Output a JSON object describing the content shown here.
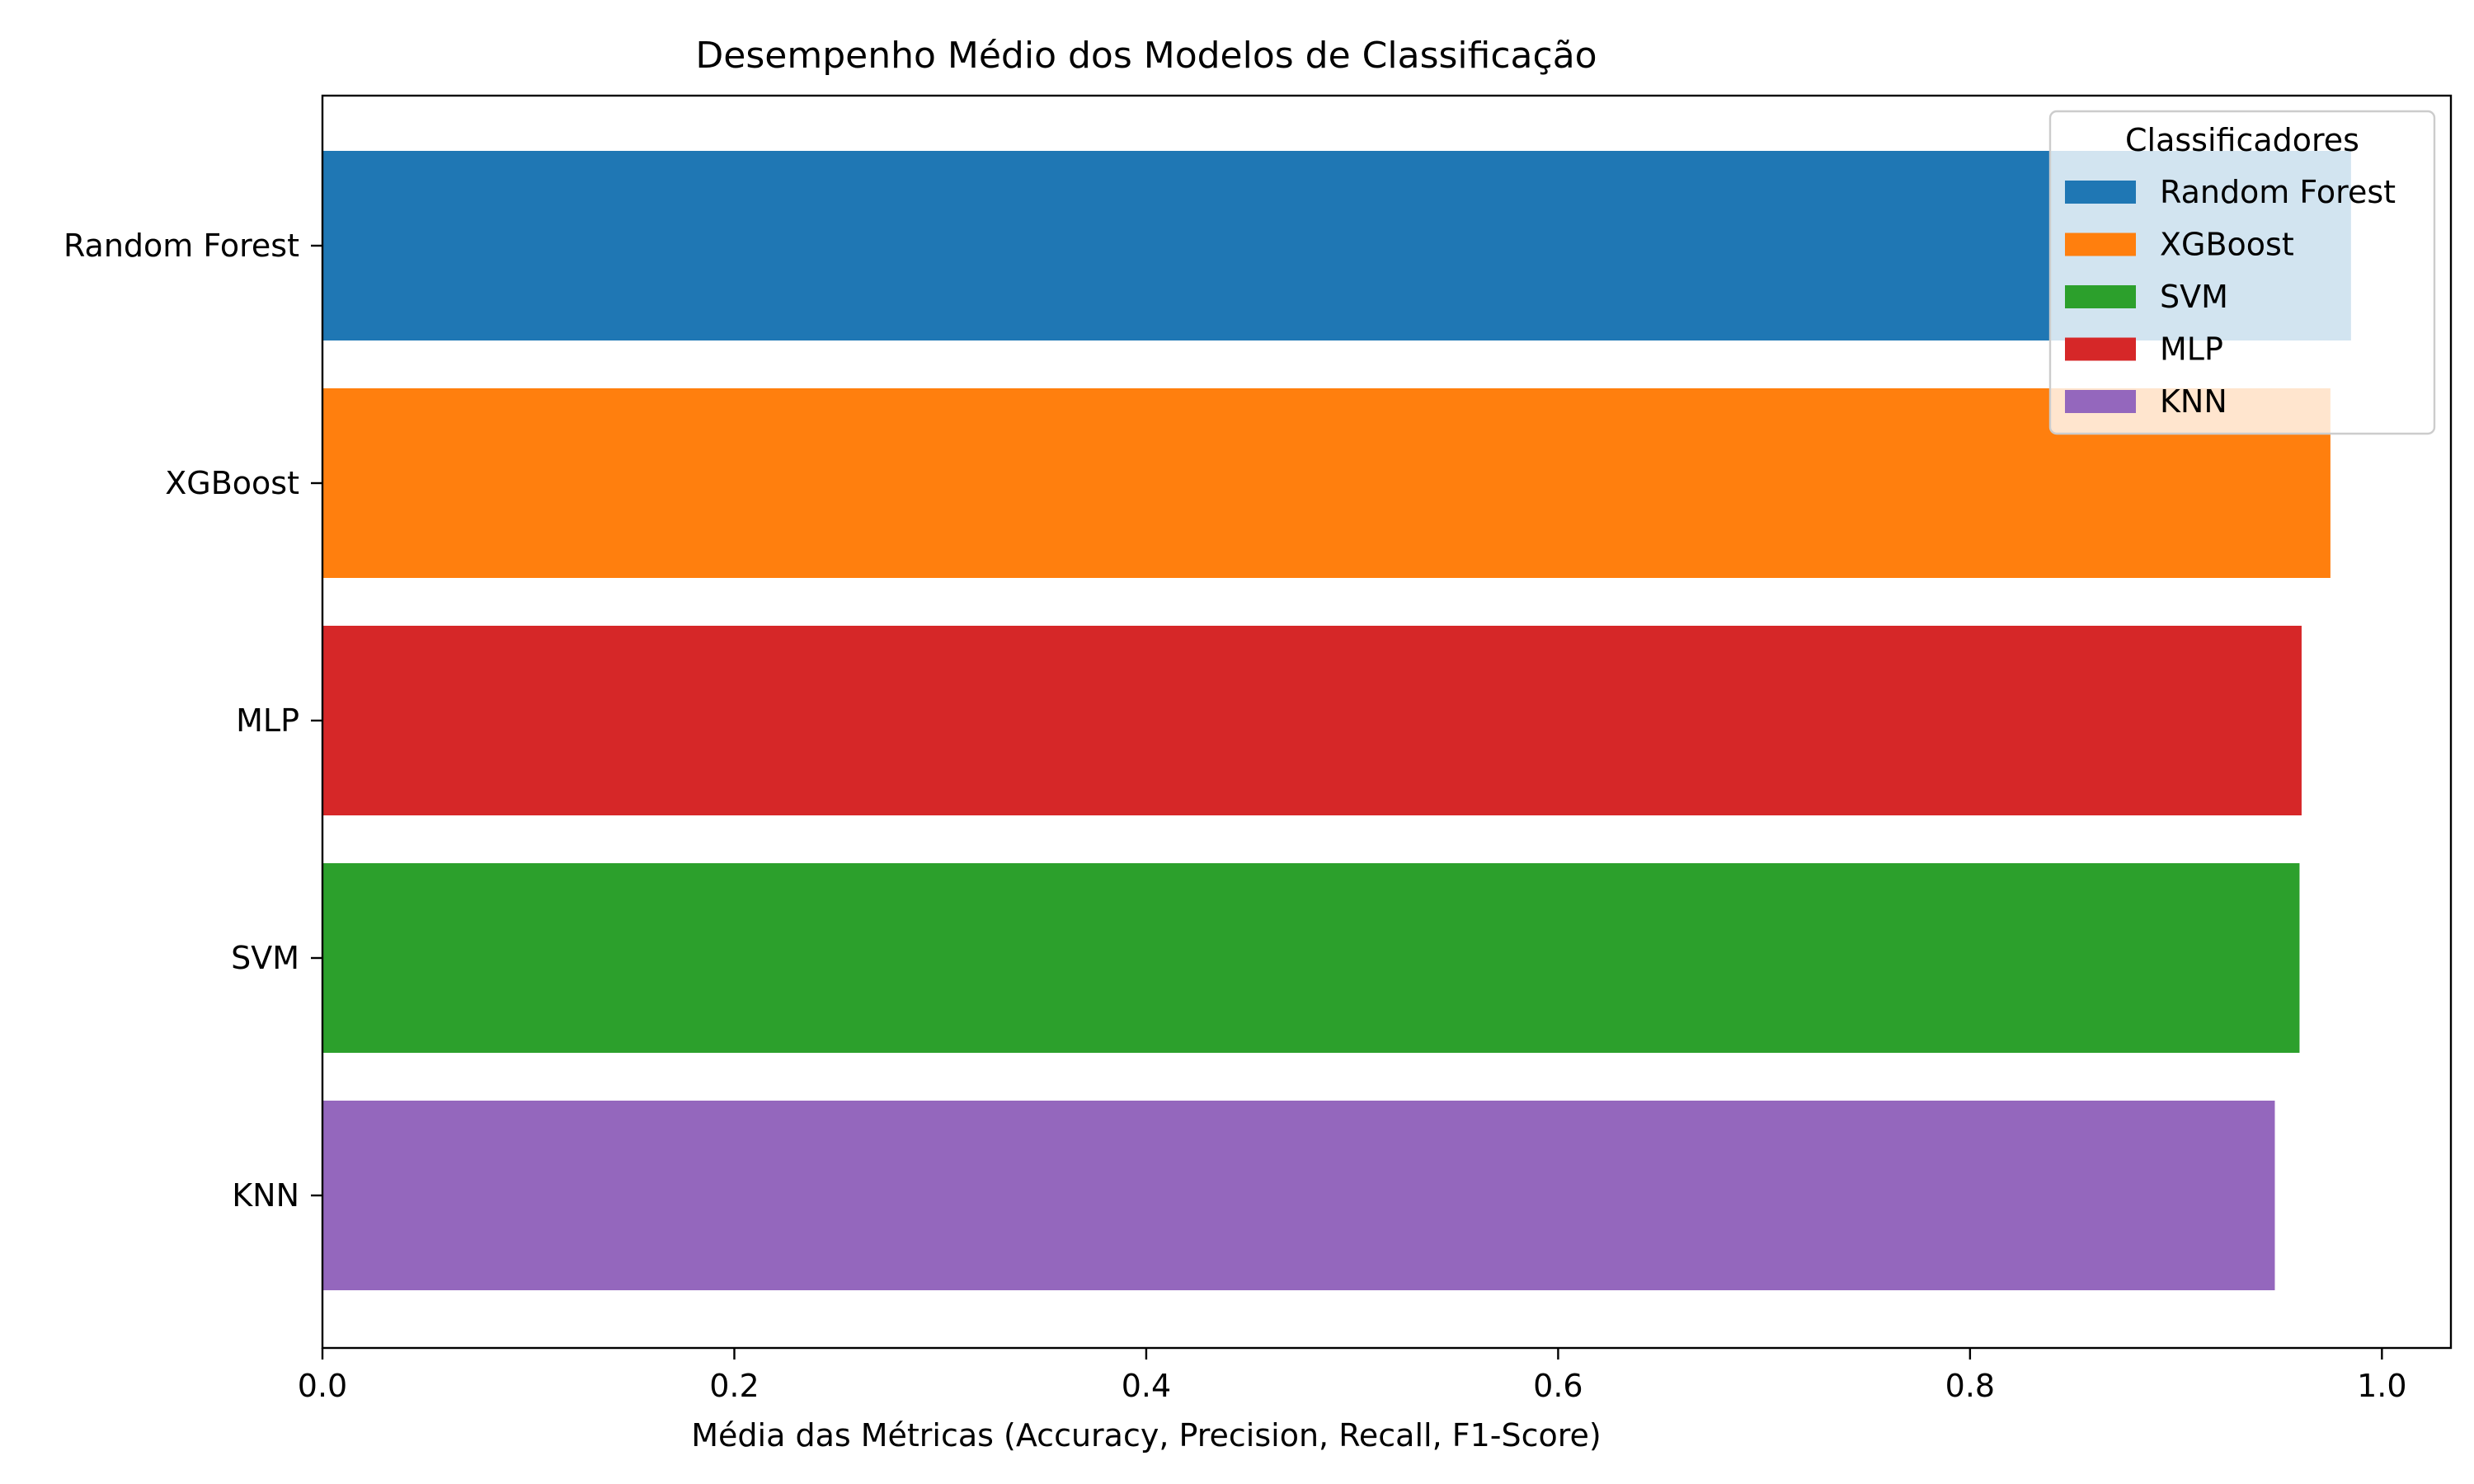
{
  "chart_data": {
    "type": "bar",
    "orientation": "horizontal",
    "title": "Desempenho Médio dos Modelos de Classificação",
    "xlabel": "Média das Métricas (Accuracy, Precision, Recall, F1-Score)",
    "ylabel": "",
    "xlim": [
      0.0,
      1.0335
    ],
    "xticks": [
      "0.0",
      "0.2",
      "0.4",
      "0.6",
      "0.8",
      "1.0"
    ],
    "categories": [
      "Random Forest",
      "XGBoost",
      "MLP",
      "SVM",
      "KNN"
    ],
    "values": [
      0.985,
      0.975,
      0.961,
      0.96,
      0.948
    ],
    "colors": [
      "#1f77b4",
      "#ff7f0e",
      "#d62728",
      "#2ca02c",
      "#9467bd"
    ],
    "grid": false,
    "legend": {
      "title": "Classificadores",
      "placement": "top-right",
      "items": [
        {
          "label": "Random Forest",
          "color": "#1f77b4"
        },
        {
          "label": "XGBoost",
          "color": "#ff7f0e"
        },
        {
          "label": "SVM",
          "color": "#2ca02c"
        },
        {
          "label": "MLP",
          "color": "#d62728"
        },
        {
          "label": "KNN",
          "color": "#9467bd"
        }
      ]
    }
  }
}
